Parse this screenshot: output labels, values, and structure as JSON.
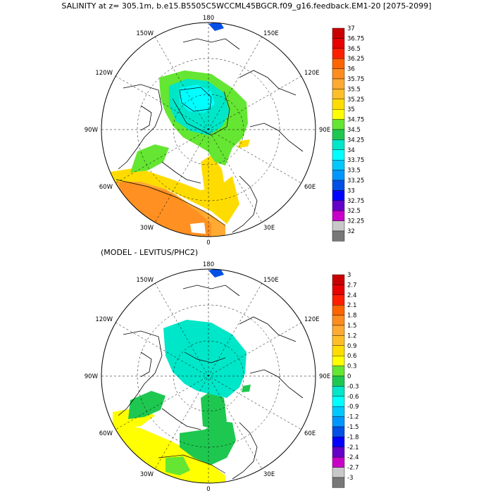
{
  "title": "SALINITY at z= 305.1m, b.e15.B5505C5WCCML45BGCR.f09_g16.feedback.EM1-20 [2075-2099]",
  "panel_bottom_title": "(MODEL - LEVITUS/PHC2)",
  "axis_labels": {
    "top": "180",
    "bottom": "0",
    "left": "90W",
    "right": "90E",
    "upper_left": "150W",
    "upper_right": "150E",
    "mid_upper_left": "120W",
    "mid_upper_right": "120E",
    "mid_lower_left": "60W",
    "mid_lower_right": "60E",
    "lower_left": "30W",
    "lower_right": "30E"
  },
  "colorbar_top": {
    "labels": [
      "37",
      "36.75",
      "36.5",
      "36.25",
      "36",
      "35.75",
      "35.5",
      "35.25",
      "35",
      "34.75",
      "34.5",
      "34.25",
      "34",
      "33.75",
      "33.5",
      "33.25",
      "33",
      "32.75",
      "32.5",
      "32.25",
      "32"
    ],
    "colors": [
      "#c80000",
      "#e60000",
      "#ff1e00",
      "#ff6400",
      "#ff8c1e",
      "#ffaa32",
      "#ffbe28",
      "#ffdc00",
      "#ffff00",
      "#64e632",
      "#1ec850",
      "#00e6c8",
      "#00ffff",
      "#00c8ff",
      "#0096ff",
      "#0050e6",
      "#0000ff",
      "#6400c8",
      "#c800c8",
      "#c8c8c8",
      "#787878"
    ]
  },
  "colorbar_bottom": {
    "labels": [
      "3",
      "2.7",
      "2.4",
      "2.1",
      "1.8",
      "1.5",
      "1.2",
      "0.9",
      "0.6",
      "0.3",
      "0",
      "-0.3",
      "-0.6",
      "-0.9",
      "-1.2",
      "-1.5",
      "-1.8",
      "-2.1",
      "-2.4",
      "-2.7",
      "-3"
    ],
    "colors": [
      "#c80000",
      "#e60000",
      "#ff1e00",
      "#ff6400",
      "#ff8c1e",
      "#ffaa32",
      "#ffbe28",
      "#ffdc00",
      "#ffff00",
      "#64e632",
      "#1ec850",
      "#00e6c8",
      "#00ffff",
      "#00c8ff",
      "#0096ff",
      "#0050e6",
      "#0000ff",
      "#6400c8",
      "#c800c8",
      "#c8c8c8",
      "#787878"
    ]
  }
}
